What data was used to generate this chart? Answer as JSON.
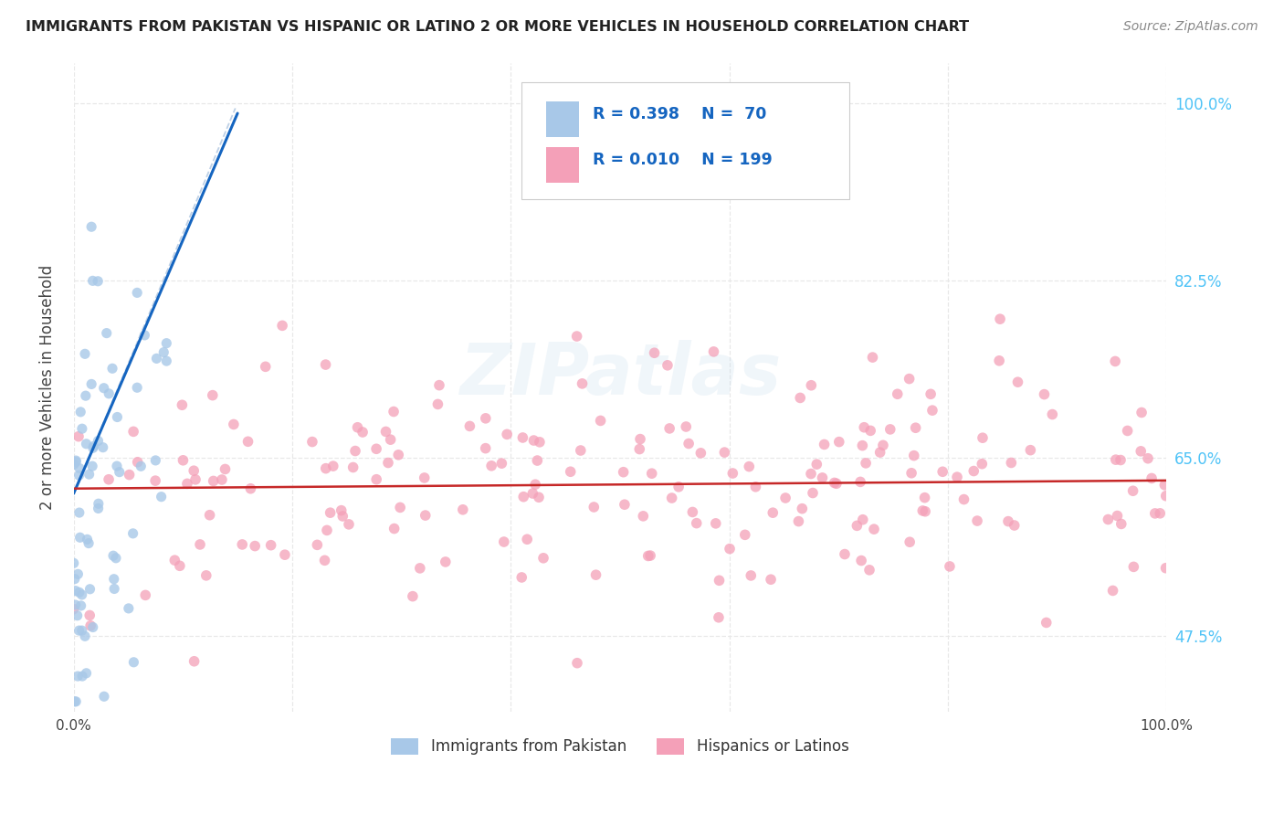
{
  "title": "IMMIGRANTS FROM PAKISTAN VS HISPANIC OR LATINO 2 OR MORE VEHICLES IN HOUSEHOLD CORRELATION CHART",
  "source": "Source: ZipAtlas.com",
  "ylabel": "2 or more Vehicles in Household",
  "xlim": [
    0.0,
    1.0
  ],
  "ylim": [
    0.4,
    1.04
  ],
  "blue_R": 0.398,
  "blue_N": 70,
  "pink_R": 0.01,
  "pink_N": 199,
  "blue_color": "#a8c8e8",
  "pink_color": "#f4a0b8",
  "blue_line_color": "#1565C0",
  "pink_line_color": "#c62828",
  "dashed_line_color": "#b8cce4",
  "background_color": "#ffffff",
  "grid_color": "#e8e8e8",
  "title_color": "#222222",
  "source_color": "#888888",
  "right_tick_color": "#4fc3f7",
  "legend_label_blue": "Immigrants from Pakistan",
  "legend_label_pink": "Hispanics or Latinos",
  "watermark": "ZIPatlas",
  "seed": 99
}
